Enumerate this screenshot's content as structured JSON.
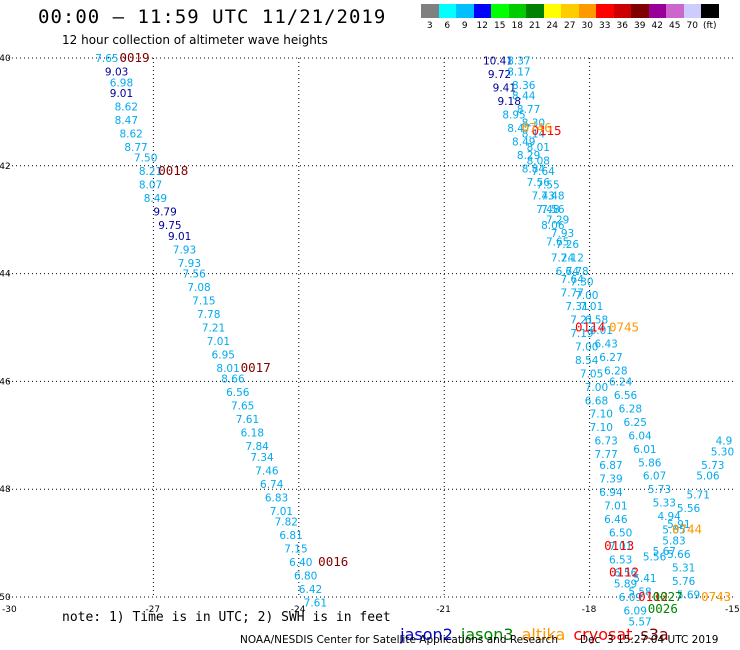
{
  "header": {
    "title": "00:00 — 11:59 UTC 11/21/2019",
    "subtitle": "12 hour collection of altimeter wave heights"
  },
  "legend": {
    "unit_label": "(ft)",
    "bins": [
      {
        "label": "3",
        "color": "#808080"
      },
      {
        "label": "6",
        "color": "#00ffff"
      },
      {
        "label": "9",
        "color": "#00bfff"
      },
      {
        "label": "12",
        "color": "#0000ff"
      },
      {
        "label": "15",
        "color": "#00ff00"
      },
      {
        "label": "18",
        "color": "#00cc00"
      },
      {
        "label": "21",
        "color": "#008000"
      },
      {
        "label": "24",
        "color": "#ffff00"
      },
      {
        "label": "27",
        "color": "#ffcc00"
      },
      {
        "label": "30",
        "color": "#ff9900"
      },
      {
        "label": "33",
        "color": "#ff0000"
      },
      {
        "label": "36",
        "color": "#cc0000"
      },
      {
        "label": "39",
        "color": "#800000"
      },
      {
        "label": "42",
        "color": "#990099"
      },
      {
        "label": "45",
        "color": "#cc66cc"
      },
      {
        "label": "70",
        "color": "#ccccff"
      },
      {
        "label": "(ft)",
        "color": "#000000"
      }
    ]
  },
  "axes": {
    "lat_labels": [
      "-40",
      "-42",
      "-44",
      "-46",
      "-48",
      "-50"
    ],
    "lon_labels": [
      "-30",
      "-27",
      "-24",
      "-21",
      "-18",
      "-15"
    ]
  },
  "colors": {
    "jason2": "#0000cc",
    "jason3": "#008800",
    "altika": "#ff9900",
    "cryosat": "#ff0000",
    "s3a": "#800000",
    "cyan": "#00aaee",
    "navy": "#000099",
    "time": "#800000"
  },
  "tracks": [
    {
      "name": "track-west",
      "obs": [
        {
          "v": "7.65",
          "lon": -28.2,
          "lat": -40.0,
          "c": "cyan"
        },
        {
          "v": "9.03",
          "lon": -28.0,
          "lat": -40.25,
          "c": "navy"
        },
        {
          "v": "6.98",
          "lon": -27.9,
          "lat": -40.45,
          "c": "cyan"
        },
        {
          "v": "9.01",
          "lon": -27.9,
          "lat": -40.65,
          "c": "navy"
        },
        {
          "v": "8.62",
          "lon": -27.8,
          "lat": -40.9,
          "c": "cyan"
        },
        {
          "v": "8.47",
          "lon": -27.8,
          "lat": -41.15,
          "c": "cyan"
        },
        {
          "v": "8.62",
          "lon": -27.7,
          "lat": -41.4,
          "c": "cyan"
        },
        {
          "v": "8.77",
          "lon": -27.6,
          "lat": -41.65,
          "c": "cyan"
        },
        {
          "v": "7.50",
          "lon": -27.4,
          "lat": -41.85,
          "c": "cyan"
        },
        {
          "v": "8.21",
          "lon": -27.3,
          "lat": -42.1,
          "c": "cyan"
        },
        {
          "v": "8.07",
          "lon": -27.3,
          "lat": -42.35,
          "c": "cyan"
        },
        {
          "v": "8.49",
          "lon": -27.2,
          "lat": -42.6,
          "c": "cyan"
        },
        {
          "v": "9.79",
          "lon": -27.0,
          "lat": -42.85,
          "c": "navy"
        },
        {
          "v": "9.75",
          "lon": -26.9,
          "lat": -43.1,
          "c": "navy"
        },
        {
          "v": "9.01",
          "lon": -26.7,
          "lat": -43.3,
          "c": "navy"
        },
        {
          "v": "7.93",
          "lon": -26.6,
          "lat": -43.55,
          "c": "cyan"
        },
        {
          "v": "7.93",
          "lon": -26.5,
          "lat": -43.8,
          "c": "cyan"
        },
        {
          "v": "7.56",
          "lon": -26.4,
          "lat": -44.0,
          "c": "cyan"
        },
        {
          "v": "7.08",
          "lon": -26.3,
          "lat": -44.25,
          "c": "cyan"
        },
        {
          "v": "7.15",
          "lon": -26.2,
          "lat": -44.5,
          "c": "cyan"
        },
        {
          "v": "7.78",
          "lon": -26.1,
          "lat": -44.75,
          "c": "cyan"
        },
        {
          "v": "7.21",
          "lon": -26.0,
          "lat": -45.0,
          "c": "cyan"
        },
        {
          "v": "7.01",
          "lon": -25.9,
          "lat": -45.25,
          "c": "cyan"
        },
        {
          "v": "6.95",
          "lon": -25.8,
          "lat": -45.5,
          "c": "cyan"
        },
        {
          "v": "8.01",
          "lon": -25.7,
          "lat": -45.75,
          "c": "cyan"
        },
        {
          "v": "8.66",
          "lon": -25.6,
          "lat": -45.95,
          "c": "cyan"
        },
        {
          "v": "6.56",
          "lon": -25.5,
          "lat": -46.2,
          "c": "cyan"
        },
        {
          "v": "7.65",
          "lon": -25.4,
          "lat": -46.45,
          "c": "cyan"
        },
        {
          "v": "7.61",
          "lon": -25.3,
          "lat": -46.7,
          "c": "cyan"
        },
        {
          "v": "6.18",
          "lon": -25.2,
          "lat": -46.95,
          "c": "cyan"
        },
        {
          "v": "7.84",
          "lon": -25.1,
          "lat": -47.2,
          "c": "cyan"
        },
        {
          "v": "7.34",
          "lon": -25.0,
          "lat": -47.4,
          "c": "cyan"
        },
        {
          "v": "7.46",
          "lon": -24.9,
          "lat": -47.65,
          "c": "cyan"
        },
        {
          "v": "6.74",
          "lon": -24.8,
          "lat": -47.9,
          "c": "cyan"
        },
        {
          "v": "6.83",
          "lon": -24.7,
          "lat": -48.15,
          "c": "cyan"
        },
        {
          "v": "7.01",
          "lon": -24.6,
          "lat": -48.4,
          "c": "cyan"
        },
        {
          "v": "7.82",
          "lon": -24.5,
          "lat": -48.6,
          "c": "cyan"
        },
        {
          "v": "6.81",
          "lon": -24.4,
          "lat": -48.85,
          "c": "cyan"
        },
        {
          "v": "7.15",
          "lon": -24.3,
          "lat": -49.1,
          "c": "cyan"
        },
        {
          "v": "6.40",
          "lon": -24.2,
          "lat": -49.35,
          "c": "cyan"
        },
        {
          "v": "6.80",
          "lon": -24.1,
          "lat": -49.6,
          "c": "cyan"
        },
        {
          "v": "6.42",
          "lon": -24.0,
          "lat": -49.85,
          "c": "cyan"
        },
        {
          "v": "7.61",
          "lon": -23.9,
          "lat": -50.1,
          "c": "cyan"
        }
      ]
    },
    {
      "name": "track-east",
      "obs": [
        {
          "v": "10.41",
          "lon": -20.2,
          "lat": -40.05,
          "c": "navy"
        },
        {
          "v": "9.72",
          "lon": -20.1,
          "lat": -40.3,
          "c": "navy"
        },
        {
          "v": "9.41",
          "lon": -20.0,
          "lat": -40.55,
          "c": "navy"
        },
        {
          "v": "9.18",
          "lon": -19.9,
          "lat": -40.8,
          "c": "navy"
        },
        {
          "v": "8.95",
          "lon": -19.8,
          "lat": -41.05,
          "c": "cyan"
        },
        {
          "v": "8.47",
          "lon": -19.7,
          "lat": -41.3,
          "c": "cyan"
        },
        {
          "v": "8.49",
          "lon": -19.6,
          "lat": -41.55,
          "c": "cyan"
        },
        {
          "v": "8.29",
          "lon": -19.5,
          "lat": -41.8,
          "c": "cyan"
        },
        {
          "v": "8.84",
          "lon": -19.4,
          "lat": -42.05,
          "c": "cyan"
        },
        {
          "v": "7.56",
          "lon": -19.3,
          "lat": -42.3,
          "c": "cyan"
        },
        {
          "v": "7.43",
          "lon": -19.2,
          "lat": -42.55,
          "c": "cyan"
        },
        {
          "v": "7.48",
          "lon": -19.1,
          "lat": -42.8,
          "c": "cyan"
        },
        {
          "v": "8.06",
          "lon": -19.0,
          "lat": -43.1,
          "c": "cyan"
        },
        {
          "v": "7.65",
          "lon": -18.9,
          "lat": -43.4,
          "c": "cyan"
        },
        {
          "v": "7.24",
          "lon": -18.8,
          "lat": -43.7,
          "c": "cyan"
        },
        {
          "v": "6.74",
          "lon": -18.7,
          "lat": -43.95,
          "c": "cyan"
        },
        {
          "v": "7.64",
          "lon": -18.6,
          "lat": -44.1,
          "c": "cyan"
        },
        {
          "v": "7.77",
          "lon": -18.6,
          "lat": -44.35,
          "c": "cyan"
        },
        {
          "v": "7.31",
          "lon": -18.5,
          "lat": -44.6,
          "c": "cyan"
        },
        {
          "v": "7.21",
          "lon": -18.4,
          "lat": -44.85,
          "c": "cyan"
        },
        {
          "v": "7.19",
          "lon": -18.4,
          "lat": -45.1,
          "c": "cyan"
        },
        {
          "v": "7.00",
          "lon": -18.3,
          "lat": -45.35,
          "c": "cyan"
        },
        {
          "v": "8.54",
          "lon": -18.3,
          "lat": -45.6,
          "c": "cyan"
        },
        {
          "v": "7.05",
          "lon": -18.2,
          "lat": -45.85,
          "c": "cyan"
        },
        {
          "v": "7.00",
          "lon": -18.1,
          "lat": -46.1,
          "c": "cyan"
        },
        {
          "v": "6.68",
          "lon": -18.1,
          "lat": -46.35,
          "c": "cyan"
        },
        {
          "v": "7.10",
          "lon": -18.0,
          "lat": -46.6,
          "c": "cyan"
        },
        {
          "v": "7.10",
          "lon": -18.0,
          "lat": -46.85,
          "c": "cyan"
        },
        {
          "v": "6.73",
          "lon": -17.9,
          "lat": -47.1,
          "c": "cyan"
        },
        {
          "v": "7.77",
          "lon": -17.9,
          "lat": -47.35,
          "c": "cyan"
        },
        {
          "v": "6.87",
          "lon": -17.8,
          "lat": -47.55,
          "c": "cyan"
        },
        {
          "v": "7.39",
          "lon": -17.8,
          "lat": -47.8,
          "c": "cyan"
        },
        {
          "v": "6.94",
          "lon": -17.8,
          "lat": -48.05,
          "c": "cyan"
        },
        {
          "v": "7.01",
          "lon": -17.7,
          "lat": -48.3,
          "c": "cyan"
        },
        {
          "v": "6.46",
          "lon": -17.7,
          "lat": -48.55,
          "c": "cyan"
        },
        {
          "v": "6.50",
          "lon": -17.6,
          "lat": -48.8,
          "c": "cyan"
        },
        {
          "v": "7.01",
          "lon": -17.6,
          "lat": -49.05,
          "c": "cyan"
        },
        {
          "v": "6.53",
          "lon": -17.6,
          "lat": -49.3,
          "c": "cyan"
        },
        {
          "v": "6.56",
          "lon": -17.5,
          "lat": -49.55,
          "c": "cyan"
        },
        {
          "v": "5.89",
          "lon": -17.5,
          "lat": -49.75,
          "c": "cyan"
        },
        {
          "v": "6.09",
          "lon": -17.4,
          "lat": -50.0,
          "c": "cyan"
        },
        {
          "v": "6.09",
          "lon": -17.3,
          "lat": -50.25,
          "c": "cyan"
        },
        {
          "v": "5.57",
          "lon": -17.2,
          "lat": -50.45,
          "c": "cyan"
        }
      ]
    },
    {
      "name": "track-east-2",
      "obs": [
        {
          "v": "8.37",
          "lon": -19.7,
          "lat": -40.05,
          "c": "cyan"
        },
        {
          "v": "8.17",
          "lon": -19.7,
          "lat": -40.25,
          "c": "cyan"
        },
        {
          "v": "8.36",
          "lon": -19.6,
          "lat": -40.5,
          "c": "cyan"
        },
        {
          "v": "8.44",
          "lon": -19.6,
          "lat": -40.7,
          "c": "cyan"
        },
        {
          "v": "8.77",
          "lon": -19.5,
          "lat": -40.95,
          "c": "cyan"
        },
        {
          "v": "8.30",
          "lon": -19.4,
          "lat": -41.2,
          "c": "cyan"
        },
        {
          "v": "8.14",
          "lon": -19.4,
          "lat": -41.4,
          "c": "cyan"
        },
        {
          "v": "8.01",
          "lon": -19.3,
          "lat": -41.65,
          "c": "cyan"
        },
        {
          "v": "8.08",
          "lon": -19.3,
          "lat": -41.9,
          "c": "cyan"
        },
        {
          "v": "7.64",
          "lon": -19.2,
          "lat": -42.1,
          "c": "cyan"
        },
        {
          "v": "7.55",
          "lon": -19.1,
          "lat": -42.35,
          "c": "cyan"
        },
        {
          "v": "7.48",
          "lon": -19.0,
          "lat": -42.55,
          "c": "cyan"
        },
        {
          "v": "7.56",
          "lon": -19.0,
          "lat": -42.8,
          "c": "cyan"
        },
        {
          "v": "7.29",
          "lon": -18.9,
          "lat": -43.0,
          "c": "cyan"
        },
        {
          "v": "7.93",
          "lon": -18.8,
          "lat": -43.25,
          "c": "cyan"
        },
        {
          "v": "7.26",
          "lon": -18.7,
          "lat": -43.45,
          "c": "cyan"
        },
        {
          "v": "7.12",
          "lon": -18.6,
          "lat": -43.7,
          "c": "cyan"
        },
        {
          "v": "6.78",
          "lon": -18.5,
          "lat": -43.95,
          "c": "cyan"
        },
        {
          "v": "7.30",
          "lon": -18.4,
          "lat": -44.15,
          "c": "cyan"
        },
        {
          "v": "7.00",
          "lon": -18.3,
          "lat": -44.4,
          "c": "cyan"
        },
        {
          "v": "7.01",
          "lon": -18.2,
          "lat": -44.6,
          "c": "cyan"
        },
        {
          "v": "6.58",
          "lon": -18.1,
          "lat": -44.85,
          "c": "cyan"
        },
        {
          "v": "6.01",
          "lon": -18.0,
          "lat": -45.05,
          "c": "cyan"
        },
        {
          "v": "6.43",
          "lon": -17.9,
          "lat": -45.3,
          "c": "cyan"
        },
        {
          "v": "6.27",
          "lon": -17.8,
          "lat": -45.55,
          "c": "cyan"
        },
        {
          "v": "6.28",
          "lon": -17.7,
          "lat": -45.8,
          "c": "cyan"
        },
        {
          "v": "6.24",
          "lon": -17.6,
          "lat": -46.0,
          "c": "cyan"
        },
        {
          "v": "6.56",
          "lon": -17.5,
          "lat": -46.25,
          "c": "cyan"
        },
        {
          "v": "6.28",
          "lon": -17.4,
          "lat": -46.5,
          "c": "cyan"
        },
        {
          "v": "6.25",
          "lon": -17.3,
          "lat": -46.75,
          "c": "cyan"
        },
        {
          "v": "6.04",
          "lon": -17.2,
          "lat": -47.0,
          "c": "cyan"
        },
        {
          "v": "6.01",
          "lon": -17.1,
          "lat": -47.25,
          "c": "cyan"
        },
        {
          "v": "5.86",
          "lon": -17.0,
          "lat": -47.5,
          "c": "cyan"
        },
        {
          "v": "6.07",
          "lon": -16.9,
          "lat": -47.75,
          "c": "cyan"
        },
        {
          "v": "5.73",
          "lon": -16.8,
          "lat": -48.0,
          "c": "cyan"
        },
        {
          "v": "5.33",
          "lon": -16.7,
          "lat": -48.25,
          "c": "cyan"
        },
        {
          "v": "4.94",
          "lon": -16.6,
          "lat": -48.5,
          "c": "cyan"
        },
        {
          "v": "5.85",
          "lon": -16.5,
          "lat": -48.75,
          "c": "cyan"
        },
        {
          "v": "5.83",
          "lon": -16.5,
          "lat": -48.95,
          "c": "cyan"
        },
        {
          "v": "5.66",
          "lon": -16.4,
          "lat": -49.2,
          "c": "cyan"
        },
        {
          "v": "5.31",
          "lon": -16.3,
          "lat": -49.45,
          "c": "cyan"
        },
        {
          "v": "5.76",
          "lon": -16.3,
          "lat": -49.7,
          "c": "cyan"
        },
        {
          "v": "5.69",
          "lon": -16.2,
          "lat": -49.95,
          "c": "cyan"
        }
      ]
    },
    {
      "name": "track-south-east",
      "obs": [
        {
          "v": "5.41",
          "lon": -17.1,
          "lat": -49.65,
          "c": "cyan"
        },
        {
          "v": "5.58",
          "lon": -17.2,
          "lat": -49.9,
          "c": "cyan"
        },
        {
          "v": "5.56",
          "lon": -16.9,
          "lat": -49.25,
          "c": "cyan"
        },
        {
          "v": "5.67",
          "lon": -16.7,
          "lat": -49.15,
          "c": "cyan"
        },
        {
          "v": "5.91",
          "lon": -16.4,
          "lat": -48.65,
          "c": "cyan"
        },
        {
          "v": "5.56",
          "lon": -16.2,
          "lat": -48.35,
          "c": "cyan"
        },
        {
          "v": "5.71",
          "lon": -16.0,
          "lat": -48.1,
          "c": "cyan"
        },
        {
          "v": "5.06",
          "lon": -15.8,
          "lat": -47.75,
          "c": "cyan"
        },
        {
          "v": "5.73",
          "lon": -15.7,
          "lat": -47.55,
          "c": "cyan"
        },
        {
          "v": "5.30",
          "lon": -15.5,
          "lat": -47.3,
          "c": "cyan"
        },
        {
          "v": "4.9",
          "lon": -15.4,
          "lat": -47.1,
          "c": "cyan"
        }
      ]
    }
  ],
  "time_labels": [
    {
      "t": "0019",
      "lon": -27.7,
      "lat": -40.0,
      "c": "time"
    },
    {
      "t": "0018",
      "lon": -26.9,
      "lat": -42.1,
      "c": "time"
    },
    {
      "t": "0017",
      "lon": -25.2,
      "lat": -45.75,
      "c": "time"
    },
    {
      "t": "0016",
      "lon": -23.6,
      "lat": -49.35,
      "c": "time"
    },
    {
      "t": "0115",
      "lon": -19.2,
      "lat": -41.35,
      "c": "cryosat"
    },
    {
      "t": "0746",
      "lon": -19.4,
      "lat": -41.3,
      "c": "altika"
    },
    {
      "t": "0114",
      "lon": -18.3,
      "lat": -45.0,
      "c": "cryosat"
    },
    {
      "t": "0745",
      "lon": -17.6,
      "lat": -45.0,
      "c": "altika"
    },
    {
      "t": "0113",
      "lon": -17.7,
      "lat": -49.05,
      "c": "cryosat"
    },
    {
      "t": "0744",
      "lon": -16.3,
      "lat": -48.75,
      "c": "altika"
    },
    {
      "t": "0112",
      "lon": -17.6,
      "lat": -49.55,
      "c": "cryosat"
    },
    {
      "t": "0112",
      "lon": -17.0,
      "lat": -50.0,
      "c": "cryosat"
    },
    {
      "t": "0027",
      "lon": -16.7,
      "lat": -50.0,
      "c": "jason3"
    },
    {
      "t": "0026",
      "lon": -16.8,
      "lat": -50.22,
      "c": "jason3"
    },
    {
      "t": "0743",
      "lon": -15.7,
      "lat": -50.0,
      "c": "altika"
    }
  ],
  "footer": {
    "note": "note: 1) Time is in UTC; 2) SWH is in feet",
    "satellites": [
      "jason2",
      "jason3",
      "altika",
      "cryosat",
      "s3a"
    ],
    "credit": "NOAA/NESDIS Center for Satellite Applications and Research",
    "timestamp": "Dec  3 15:27:04 UTC 2019"
  }
}
